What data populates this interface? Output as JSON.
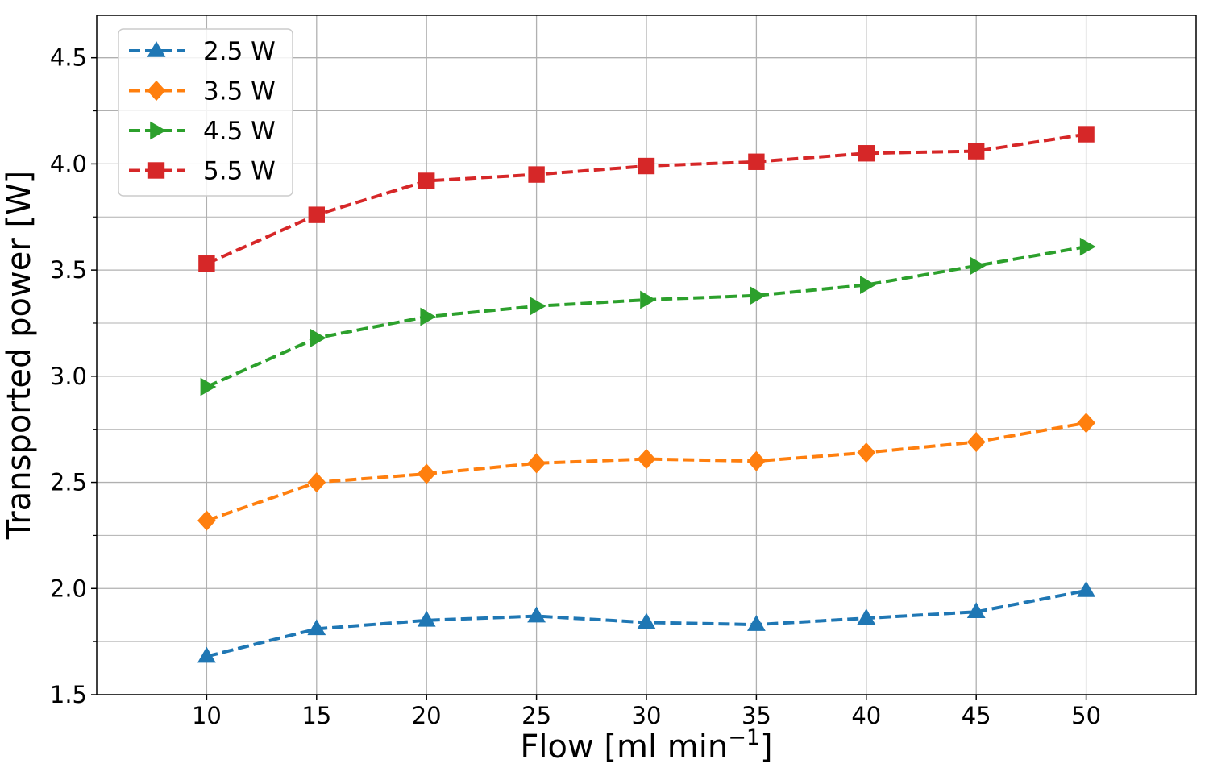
{
  "chart_data": {
    "type": "line",
    "xlabel": "Flow [ml min",
    "xlabel_sup": "−1",
    "xlabel_suffix": "]",
    "ylabel": "Transported power [W]",
    "xlim": [
      5,
      55
    ],
    "ylim": [
      1.5,
      4.7
    ],
    "x_ticks": [
      10,
      15,
      20,
      25,
      30,
      35,
      40,
      45,
      50
    ],
    "x_tick_labels": [
      "10",
      "15",
      "20",
      "25",
      "30",
      "35",
      "40",
      "45",
      "50"
    ],
    "y_ticks": [
      1.5,
      2.0,
      2.5,
      3.0,
      3.5,
      4.0,
      4.5
    ],
    "y_tick_labels": [
      "1.5",
      "2.0",
      "2.5",
      "3.0",
      "3.5",
      "4.0",
      "4.5"
    ],
    "y_minor_ticks": [
      1.75,
      2.25,
      2.75,
      3.25,
      3.75,
      4.25
    ],
    "grid": true,
    "legend_position": "top-left",
    "x": [
      10,
      15,
      20,
      25,
      30,
      35,
      40,
      45,
      50
    ],
    "series": [
      {
        "name": "2.5 W",
        "color": "#1f77b4",
        "marker": "triangle-up",
        "values": [
          1.68,
          1.81,
          1.85,
          1.87,
          1.84,
          1.83,
          1.86,
          1.89,
          1.99
        ]
      },
      {
        "name": "3.5 W",
        "color": "#ff7f0e",
        "marker": "diamond",
        "values": [
          2.32,
          2.5,
          2.54,
          2.59,
          2.61,
          2.6,
          2.64,
          2.69,
          2.78
        ]
      },
      {
        "name": "4.5 W",
        "color": "#2ca02c",
        "marker": "triangle-right",
        "values": [
          2.95,
          3.18,
          3.28,
          3.33,
          3.36,
          3.38,
          3.43,
          3.52,
          3.61
        ]
      },
      {
        "name": "5.5 W",
        "color": "#d62728",
        "marker": "square",
        "values": [
          3.53,
          3.76,
          3.92,
          3.95,
          3.99,
          4.01,
          4.05,
          4.06,
          4.14
        ]
      }
    ]
  }
}
